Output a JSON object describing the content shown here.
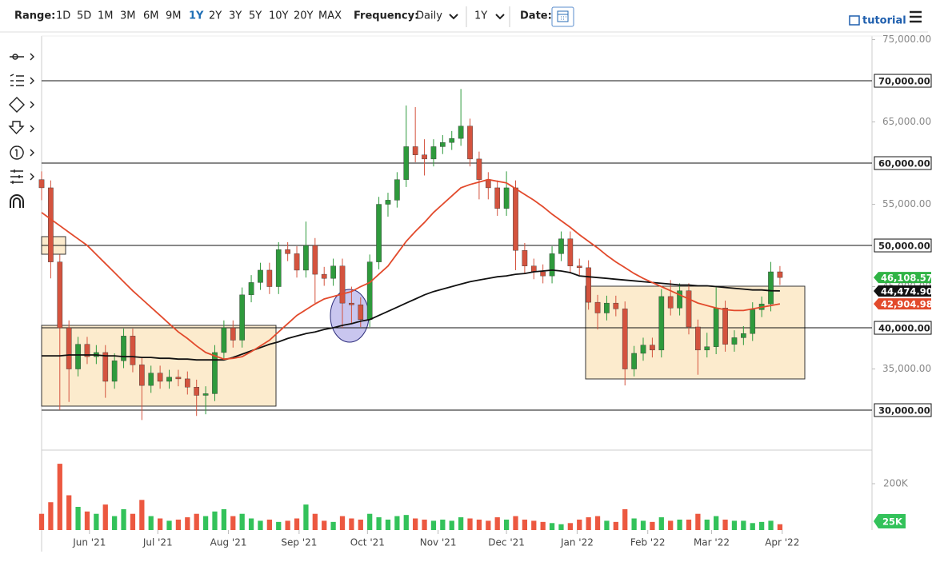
{
  "toolbar": {
    "range_label": "Range:",
    "ranges": [
      "1D",
      "5D",
      "1M",
      "3M",
      "6M",
      "9M",
      "1Y",
      "2Y",
      "3Y",
      "5Y",
      "10Y",
      "20Y",
      "MAX"
    ],
    "active_range": "1Y",
    "frequency_label": "Frequency:",
    "frequency": "Daily",
    "period": "1Y",
    "date_label": "Date:",
    "tutorial": "tutorial"
  },
  "chart_data": {
    "type": "candlestick",
    "xlim": [
      0,
      91.1
    ],
    "xticks": [
      {
        "value": 5.25,
        "label": "Jun '21"
      },
      {
        "value": 12.75,
        "label": "Jul '21"
      },
      {
        "value": 20.5,
        "label": "Aug '21"
      },
      {
        "value": 28.25,
        "label": "Sep '21"
      },
      {
        "value": 35.75,
        "label": "Oct '21"
      },
      {
        "value": 43.5,
        "label": "Nov '21"
      },
      {
        "value": 51,
        "label": "Dec '21"
      },
      {
        "value": 58.75,
        "label": "Jan '22"
      },
      {
        "value": 66.5,
        "label": "Feb '22"
      },
      {
        "value": 73.5,
        "label": "Mar '22"
      },
      {
        "value": 81.25,
        "label": "Apr '22"
      }
    ],
    "ylim": [
      25150,
      75440
    ],
    "yticks": [
      {
        "value": 35000,
        "label": "35,000.00"
      },
      {
        "value": 45000,
        "label": "45,000.00"
      },
      {
        "value": 55000,
        "label": "55,000.00"
      },
      {
        "value": 65000,
        "label": "65,000.00"
      },
      {
        "value": 75000,
        "label": "75,000.00"
      }
    ],
    "levels": [
      {
        "value": 30000,
        "label": "30,000.00"
      },
      {
        "value": 40000,
        "label": "40,000.00"
      },
      {
        "value": 50000,
        "label": "50,000.00"
      },
      {
        "value": 60000,
        "label": "60,000.00"
      },
      {
        "value": 70000,
        "label": "70,000.00"
      }
    ],
    "up_color": "#2e9a3c",
    "down_color": "#d4533e",
    "close_color": "#2fb344",
    "open": [
      58000,
      57000,
      48000,
      40000,
      35000,
      38000,
      36500,
      37000,
      33500,
      36000,
      39000,
      35500,
      33000,
      34500,
      33500,
      34000,
      33800,
      32800,
      31800,
      32000,
      37000,
      40000,
      38500,
      44000,
      45500,
      47000,
      45000,
      49500,
      49000,
      47000,
      50000,
      46500,
      46000,
      47500,
      43000,
      42800,
      41000,
      48000,
      55000,
      55500,
      58000,
      62000,
      61000,
      60500,
      62000,
      62500,
      63000,
      64500,
      60500,
      58000,
      57000,
      54500,
      57000,
      49400,
      47500,
      46800,
      46300,
      49000,
      50800,
      47500,
      47300,
      43100,
      41800,
      43000,
      42300,
      35000,
      36900,
      37900,
      37300,
      43800,
      42400,
      44500,
      40100,
      37300,
      37700,
      42400,
      38000,
      38800,
      39300,
      42200,
      42900,
      46800
    ],
    "high": [
      59000,
      57900,
      48900,
      40900,
      38900,
      38900,
      37900,
      37900,
      36900,
      39900,
      39900,
      36400,
      35400,
      35400,
      34900,
      34900,
      34700,
      33700,
      32900,
      37900,
      40900,
      40900,
      44900,
      46400,
      47900,
      47900,
      50400,
      50400,
      49900,
      52900,
      50900,
      47400,
      48400,
      48400,
      45000,
      43700,
      48900,
      55900,
      56400,
      58900,
      67000,
      66800,
      62900,
      62900,
      63400,
      63900,
      69000,
      65400,
      61400,
      58900,
      57900,
      59000,
      57900,
      50300,
      48400,
      47700,
      49900,
      51700,
      51700,
      48400,
      48200,
      44000,
      43900,
      43900,
      43200,
      37800,
      38800,
      38800,
      44700,
      45800,
      45400,
      45400,
      41000,
      39400,
      44900,
      43300,
      39700,
      40200,
      43100,
      43800,
      48000,
      47500
    ],
    "low": [
      55500,
      46000,
      30000,
      31000,
      34100,
      35600,
      35600,
      31500,
      32600,
      35100,
      34600,
      28800,
      32100,
      32600,
      32600,
      32900,
      31900,
      29300,
      29500,
      31100,
      36100,
      37600,
      37600,
      43100,
      44600,
      44100,
      44100,
      48100,
      46100,
      46100,
      43000,
      45100,
      45100,
      40000,
      40500,
      40100,
      40100,
      47100,
      53500,
      54600,
      57100,
      60100,
      58500,
      59600,
      61100,
      61600,
      62100,
      59600,
      55600,
      55600,
      53600,
      53600,
      47000,
      46600,
      45900,
      45400,
      45400,
      48100,
      46600,
      46400,
      42200,
      39800,
      40900,
      41400,
      33000,
      34100,
      36000,
      36400,
      36400,
      41500,
      41500,
      39200,
      34300,
      36400,
      36800,
      37100,
      37100,
      37900,
      38400,
      41300,
      42000,
      45200
    ],
    "close": [
      57000,
      48000,
      40000,
      35000,
      38000,
      36500,
      37000,
      33500,
      36000,
      39000,
      35500,
      33000,
      34500,
      33500,
      34000,
      33800,
      32800,
      31800,
      32000,
      37000,
      40000,
      38500,
      44000,
      45500,
      47000,
      45000,
      49500,
      49000,
      47000,
      50000,
      46500,
      46000,
      47500,
      43000,
      42800,
      41000,
      48000,
      55000,
      55500,
      58000,
      62000,
      61000,
      60500,
      62000,
      62500,
      63000,
      64500,
      60500,
      58000,
      57000,
      54500,
      57000,
      49400,
      47500,
      46800,
      46300,
      49000,
      50800,
      47500,
      47300,
      43100,
      41800,
      43000,
      42300,
      35000,
      36900,
      37900,
      37300,
      43800,
      42400,
      44500,
      40100,
      37300,
      37700,
      42400,
      38000,
      38800,
      39300,
      42200,
      42900,
      46800,
      46108.57
    ],
    "close_label": "46,108.57",
    "series": [
      {
        "type": "line",
        "color": "#111111",
        "last_label": "44,474.90",
        "values": [
          36600,
          36600,
          36600,
          36700,
          36700,
          36700,
          36700,
          36600,
          36600,
          36500,
          36500,
          36400,
          36400,
          36300,
          36300,
          36200,
          36200,
          36100,
          36100,
          36100,
          36100,
          36400,
          36800,
          37200,
          37600,
          38000,
          38300,
          38700,
          39000,
          39300,
          39500,
          39800,
          40000,
          40300,
          40500,
          40800,
          41000,
          41500,
          42000,
          42500,
          43000,
          43500,
          44000,
          44400,
          44700,
          45000,
          45300,
          45600,
          45800,
          46000,
          46200,
          46300,
          46500,
          46600,
          46800,
          46900,
          47000,
          46900,
          46700,
          46300,
          46200,
          46100,
          46000,
          45900,
          45800,
          45700,
          45600,
          45500,
          45400,
          45300,
          45200,
          45200,
          45100,
          45100,
          45000,
          44900,
          44800,
          44700,
          44600,
          44600,
          44500,
          44474.9
        ]
      },
      {
        "type": "line",
        "color": "#e24a2c",
        "last_label": "42,904.98",
        "values": [
          54000,
          53200,
          52400,
          51600,
          50800,
          50000,
          48900,
          47800,
          46700,
          45600,
          44500,
          43500,
          42500,
          41500,
          40500,
          39500,
          38700,
          37800,
          37000,
          36600,
          36200,
          36300,
          36500,
          37100,
          37800,
          38500,
          39500,
          40500,
          41500,
          42200,
          42900,
          43500,
          43800,
          44100,
          44400,
          45000,
          45500,
          46500,
          47500,
          49000,
          50500,
          51700,
          52800,
          54000,
          55000,
          56000,
          57000,
          57400,
          57700,
          58000,
          57800,
          57600,
          56900,
          56200,
          55500,
          54700,
          53800,
          53000,
          52200,
          51300,
          50500,
          49700,
          48800,
          48000,
          47300,
          46600,
          46000,
          45500,
          45000,
          44500,
          44000,
          43500,
          43000,
          42700,
          42400,
          42200,
          42100,
          42100,
          42300,
          42500,
          42700,
          42904.98
        ]
      }
    ],
    "volume": {
      "ylim": [
        0,
        345000
      ],
      "yticks": [
        {
          "value": 200000,
          "label": "200K"
        }
      ],
      "up_color": "#33c25a",
      "down_color": "#ec5840",
      "last_label": "25K",
      "values": [
        70000,
        120000,
        286000,
        150000,
        100000,
        80000,
        70000,
        110000,
        60000,
        90000,
        70000,
        130000,
        60000,
        50000,
        40000,
        45000,
        55000,
        70000,
        60000,
        80000,
        90000,
        60000,
        70000,
        50000,
        40000,
        45000,
        35000,
        40000,
        50000,
        110000,
        70000,
        40000,
        35000,
        60000,
        50000,
        45000,
        70000,
        55000,
        45000,
        60000,
        65000,
        50000,
        45000,
        40000,
        45000,
        40000,
        55000,
        50000,
        45000,
        40000,
        55000,
        45000,
        60000,
        45000,
        40000,
        35000,
        30000,
        25000,
        30000,
        45000,
        55000,
        60000,
        40000,
        35000,
        90000,
        50000,
        40000,
        35000,
        55000,
        40000,
        45000,
        45000,
        70000,
        45000,
        60000,
        45000,
        40000,
        40000,
        30000,
        35000,
        40000,
        25000
      ]
    }
  }
}
